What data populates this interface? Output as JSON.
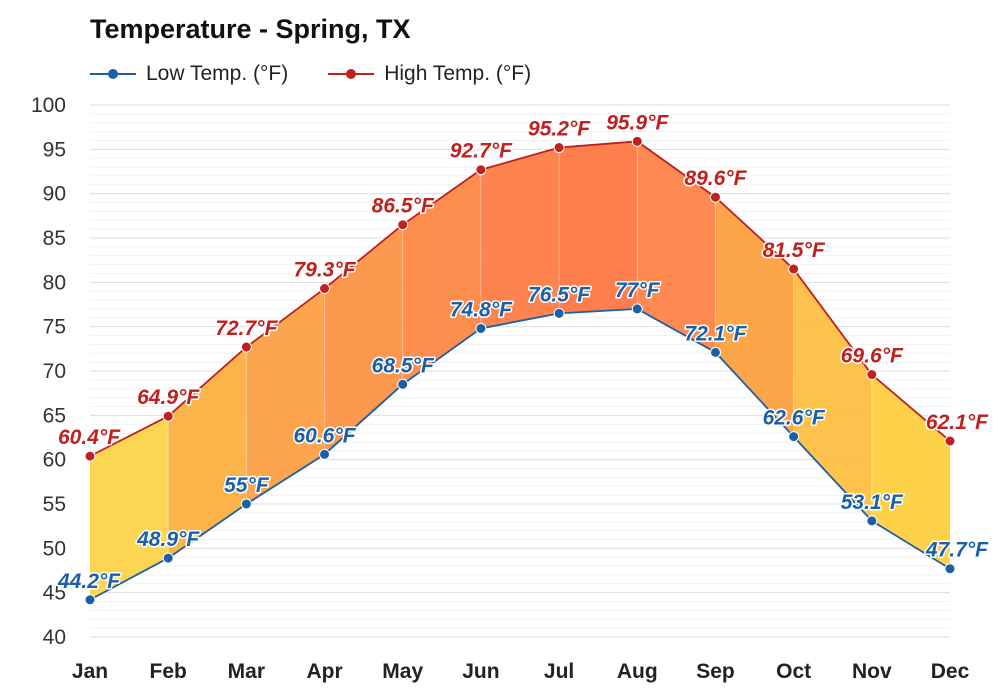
{
  "chart_data": {
    "type": "area",
    "title": "Temperature - Spring, TX",
    "categories": [
      "Jan",
      "Feb",
      "Mar",
      "Apr",
      "May",
      "Jun",
      "Jul",
      "Aug",
      "Sep",
      "Oct",
      "Nov",
      "Dec"
    ],
    "ylim": [
      40,
      100
    ],
    "yticks": [
      40,
      45,
      50,
      55,
      60,
      65,
      70,
      75,
      80,
      85,
      90,
      95,
      100
    ],
    "grid": true,
    "legend_position": "top-left",
    "series": [
      {
        "name": "Low Temp. (°F)",
        "color": "#1a5fa8",
        "values": [
          44.2,
          48.9,
          55,
          60.6,
          68.5,
          74.8,
          76.5,
          77,
          72.1,
          62.6,
          53.1,
          47.7
        ],
        "labels": [
          "44.2°F",
          "48.9°F",
          "55°F",
          "60.6°F",
          "68.5°F",
          "74.8°F",
          "76.5°F",
          "77°F",
          "72.1°F",
          "62.6°F",
          "53.1°F",
          "47.7°F"
        ]
      },
      {
        "name": "High Temp. (°F)",
        "color": "#c0201e",
        "values": [
          60.4,
          64.9,
          72.7,
          79.3,
          86.5,
          92.7,
          95.2,
          95.9,
          89.6,
          81.5,
          69.6,
          62.1
        ],
        "labels": [
          "60.4°F",
          "64.9°F",
          "72.7°F",
          "79.3°F",
          "86.5°F",
          "92.7°F",
          "95.2°F",
          "95.9°F",
          "89.6°F",
          "81.5°F",
          "69.6°F",
          "62.1°F"
        ]
      }
    ],
    "fill_colors": [
      "#fcd34a",
      "#fbb040",
      "#fca044",
      "#fd9445",
      "#fd8843",
      "#fe7c45",
      "#fe7743",
      "#fe8448",
      "#fda13f",
      "#fcbf42",
      "#fdd03f",
      "#fde35e"
    ]
  }
}
